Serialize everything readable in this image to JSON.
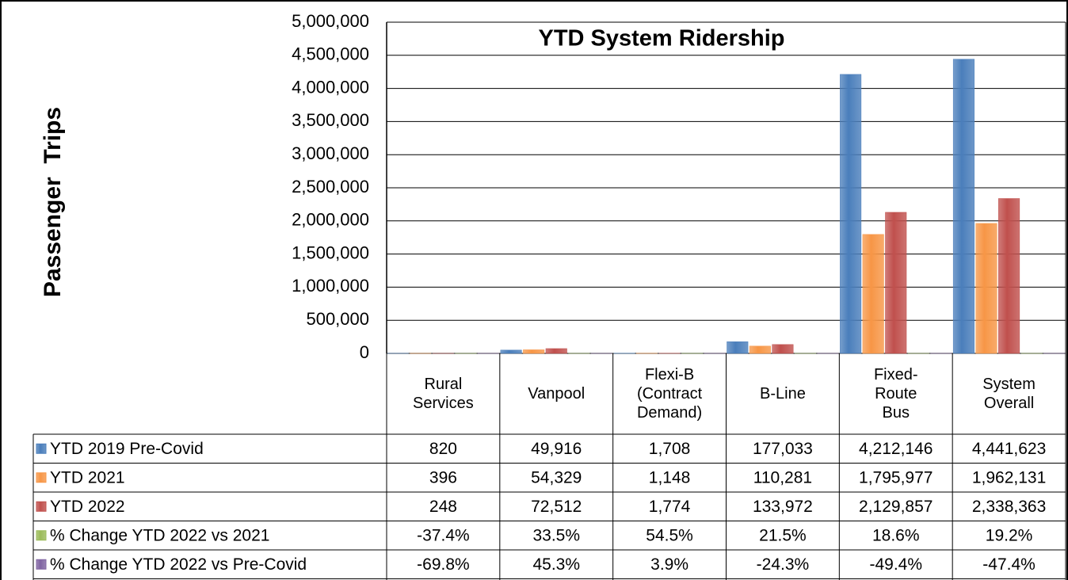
{
  "chart_data": {
    "type": "bar",
    "title": "YTD System Ridership",
    "y_label": "Passenger  Trips",
    "categories": [
      "Rural Services",
      "Vanpool",
      "Flexi-B (Contract Demand)",
      "B-Line",
      "Fixed-Route Bus",
      "System Overall"
    ],
    "series": [
      {
        "name": "YTD 2019 Pre-Covid",
        "color": "#4a7ebb",
        "values": [
          820,
          49916,
          1708,
          177033,
          4212146,
          4441623
        ],
        "value_labels": [
          "820",
          "49,916",
          "1,708",
          "177,033",
          "4,212,146",
          "4,441,623"
        ]
      },
      {
        "name": "YTD 2021",
        "color": "#f79646",
        "values": [
          396,
          54329,
          1148,
          110281,
          1795977,
          1962131
        ],
        "value_labels": [
          "396",
          "54,329",
          "1,148",
          "110,281",
          "1,795,977",
          "1,962,131"
        ]
      },
      {
        "name": "YTD 2022",
        "color": "#c0504d",
        "values": [
          248,
          72512,
          1774,
          133972,
          2129857,
          2338363
        ],
        "value_labels": [
          "248",
          "72,512",
          "1,774",
          "133,972",
          "2,129,857",
          "2,338,363"
        ]
      },
      {
        "name": "% Change YTD 2022 vs 2021",
        "color": "#9bbb59",
        "values": [
          -37.4,
          33.5,
          54.5,
          21.5,
          18.6,
          19.2
        ],
        "value_labels": [
          "-37.4%",
          "33.5%",
          "54.5%",
          "21.5%",
          "18.6%",
          "19.2%"
        ]
      },
      {
        "name": "% Change YTD 2022 vs Pre-Covid",
        "color": "#8064a2",
        "values": [
          -69.8,
          45.3,
          3.9,
          -24.3,
          -49.4,
          -47.4
        ],
        "value_labels": [
          "-69.8%",
          "45.3%",
          "3.9%",
          "-24.3%",
          "-49.4%",
          "-47.4%"
        ]
      }
    ],
    "ylim": [
      0,
      5000000
    ],
    "yticks": [
      0,
      {
        "value": 500000,
        "label": "500,000"
      },
      {
        "value": 1000000,
        "label": "1,000,000"
      },
      {
        "value": 1500000,
        "label": "1,500,000"
      },
      {
        "value": 2000000,
        "label": "2,000,000"
      },
      {
        "value": 2500000,
        "label": "2,500,000"
      },
      {
        "value": 3000000,
        "label": "3,000,000"
      },
      {
        "value": 3500000,
        "label": "3,500,000"
      },
      {
        "value": 4000000,
        "label": "4,000,000"
      },
      {
        "value": 4500000,
        "label": "4,500,000"
      },
      {
        "value": 5000000,
        "label": "5,000,000"
      }
    ],
    "grid": true
  }
}
